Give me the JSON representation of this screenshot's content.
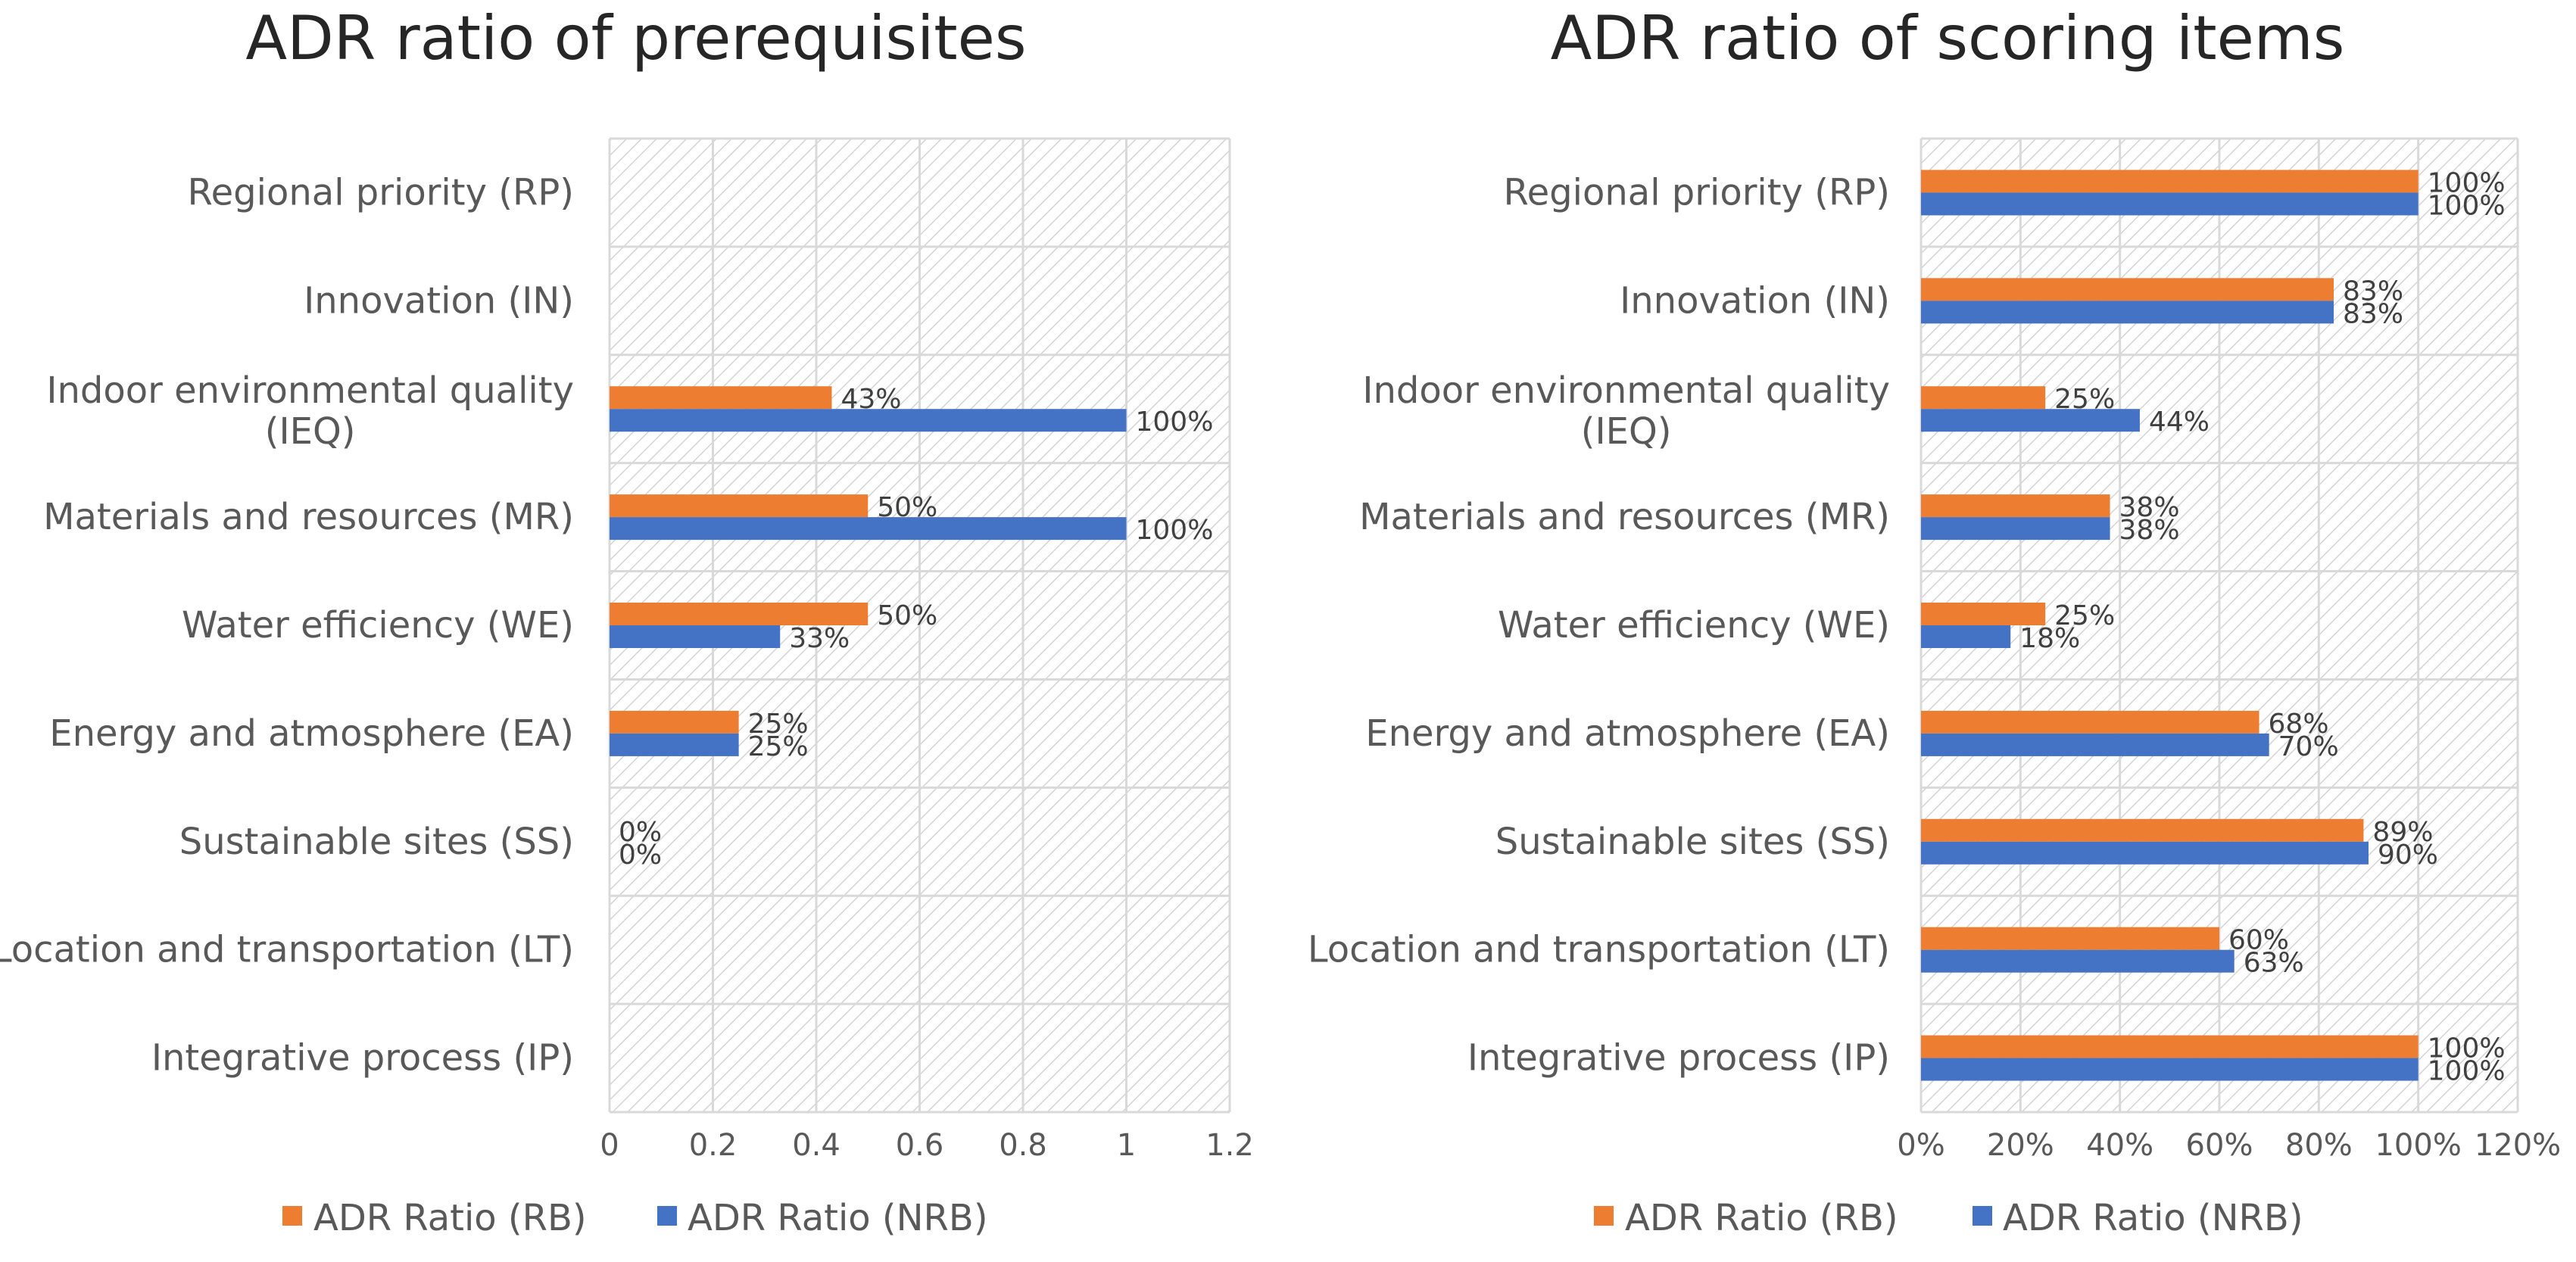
{
  "chart_data": [
    {
      "type": "bar",
      "orientation": "horizontal",
      "title": "ADR ratio of prerequisites",
      "categories": [
        "Integrative process (IP)",
        "Location and transportation (LT)",
        "Sustainable sites (SS)",
        "Energy and atmosphere (EA)",
        "Water efficiency (WE)",
        "Materials and resources (MR)",
        "Indoor environmental quality (IEQ)",
        "Innovation (IN)",
        "Regional priority (RP)"
      ],
      "series": [
        {
          "name": "ADR Ratio (RB)",
          "color": "#ED7D31",
          "values": [
            null,
            null,
            0,
            0.25,
            0.5,
            0.5,
            0.43,
            null,
            null
          ],
          "labels": [
            "",
            "",
            "0%",
            "25%",
            "50%",
            "50%",
            "43%",
            "",
            ""
          ]
        },
        {
          "name": "ADR Ratio (NRB)",
          "color": "#4472C4",
          "values": [
            null,
            null,
            0,
            0.25,
            0.33,
            1,
            1,
            null,
            null
          ],
          "labels": [
            "",
            "",
            "0%",
            "25%",
            "33%",
            "100%",
            "100%",
            "",
            ""
          ]
        }
      ],
      "xlim": [
        0,
        1.2
      ],
      "xticks": [
        "0",
        "0.2",
        "0.4",
        "0.6",
        "0.8",
        "1",
        "1.2"
      ],
      "grid": true,
      "legend_position": "bottom"
    },
    {
      "type": "bar",
      "orientation": "horizontal",
      "title": "ADR ratio of scoring items",
      "categories": [
        "Integrative process (IP)",
        "Location and transportation (LT)",
        "Sustainable sites (SS)",
        "Energy and atmosphere (EA)",
        "Water efficiency (WE)",
        "Materials and resources (MR)",
        "Indoor environmental quality (IEQ)",
        "Innovation (IN)",
        "Regional priority (RP)"
      ],
      "series": [
        {
          "name": "ADR Ratio (RB)",
          "color": "#ED7D31",
          "values": [
            1.0,
            0.6,
            0.89,
            0.68,
            0.25,
            0.38,
            0.25,
            0.83,
            1.0
          ],
          "labels": [
            "100%",
            "60%",
            "89%",
            "68%",
            "25%",
            "38%",
            "25%",
            "83%",
            "100%"
          ]
        },
        {
          "name": "ADR Ratio (NRB)",
          "color": "#4472C4",
          "values": [
            1.0,
            0.63,
            0.9,
            0.7,
            0.18,
            0.38,
            0.44,
            0.83,
            1.0
          ],
          "labels": [
            "100%",
            "63%",
            "90%",
            "70%",
            "18%",
            "38%",
            "44%",
            "83%",
            "100%"
          ]
        }
      ],
      "xlim": [
        0,
        1.2
      ],
      "xticks": [
        "0%",
        "20%",
        "40%",
        "60%",
        "80%",
        "100%",
        "120%"
      ],
      "grid": true,
      "legend_position": "bottom"
    }
  ]
}
